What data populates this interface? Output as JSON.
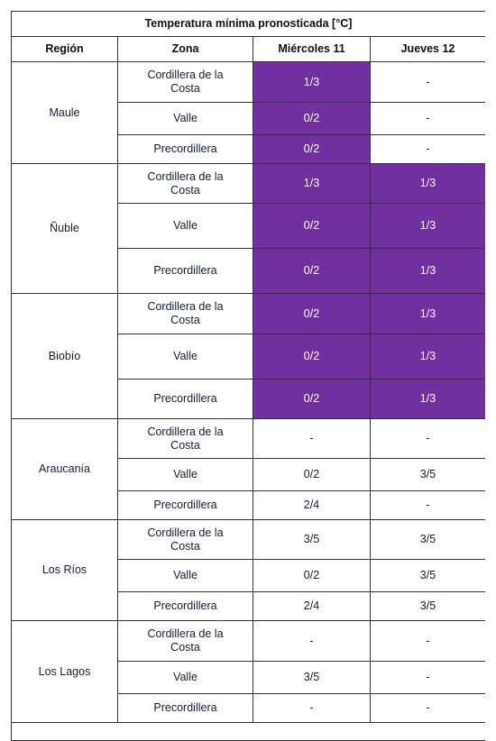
{
  "title": "Temperatura mínima pronosticada [°C]",
  "header": [
    "Región",
    "Zona",
    "Miércoles 11",
    "Jueves 12"
  ],
  "regions": [
    {
      "name": "Maule",
      "zones": [
        {
          "zone": "Cordillera de la Costa",
          "values": [
            "1/3",
            "-"
          ]
        },
        {
          "zone": "Valle",
          "values": [
            "0/2",
            "-"
          ]
        },
        {
          "zone": "Precordillera",
          "values": [
            "0/2",
            "-"
          ]
        }
      ]
    },
    {
      "name": "Ñuble",
      "zones": [
        {
          "zone": "Cordillera de la Costa",
          "values": [
            "1/3",
            "1/3"
          ]
        },
        {
          "zone": "Valle",
          "values": [
            "0/2",
            "1/3"
          ]
        },
        {
          "zone": "Precordillera",
          "values": [
            "0/2",
            "1/3"
          ]
        }
      ]
    },
    {
      "name": "Biobío",
      "zones": [
        {
          "zone": "Cordillera de la Costa",
          "values": [
            "0/2",
            "1/3"
          ]
        },
        {
          "zone": "Valle",
          "values": [
            "0/2",
            "1/3"
          ]
        },
        {
          "zone": "Precordillera",
          "values": [
            "0/2",
            "1/3"
          ]
        }
      ]
    },
    {
      "name": "Araucanía",
      "zones": [
        {
          "zone": "Cordillera de la Costa",
          "values": [
            "-",
            "-"
          ]
        },
        {
          "zone": "Valle",
          "values": [
            "0/2",
            "3/5"
          ]
        },
        {
          "zone": "Precordillera",
          "values": [
            "2/4",
            "-"
          ]
        }
      ]
    },
    {
      "name": "Los Ríos",
      "zones": [
        {
          "zone": "Cordillera de la Costa",
          "values": [
            "3/5",
            "3/5"
          ]
        },
        {
          "zone": "Valle",
          "values": [
            "0/2",
            "3/5"
          ]
        },
        {
          "zone": "Precordillera",
          "values": [
            "2/4",
            "3/5"
          ]
        }
      ]
    },
    {
      "name": "Los Lagos",
      "zones": [
        {
          "zone": "Cordillera de la Costa",
          "values": [
            "-",
            "-"
          ]
        },
        {
          "zone": "Valle",
          "values": [
            "3/5",
            "-"
          ]
        },
        {
          "zone": "Precordillera",
          "values": [
            "-",
            "-"
          ]
        }
      ]
    }
  ]
}
